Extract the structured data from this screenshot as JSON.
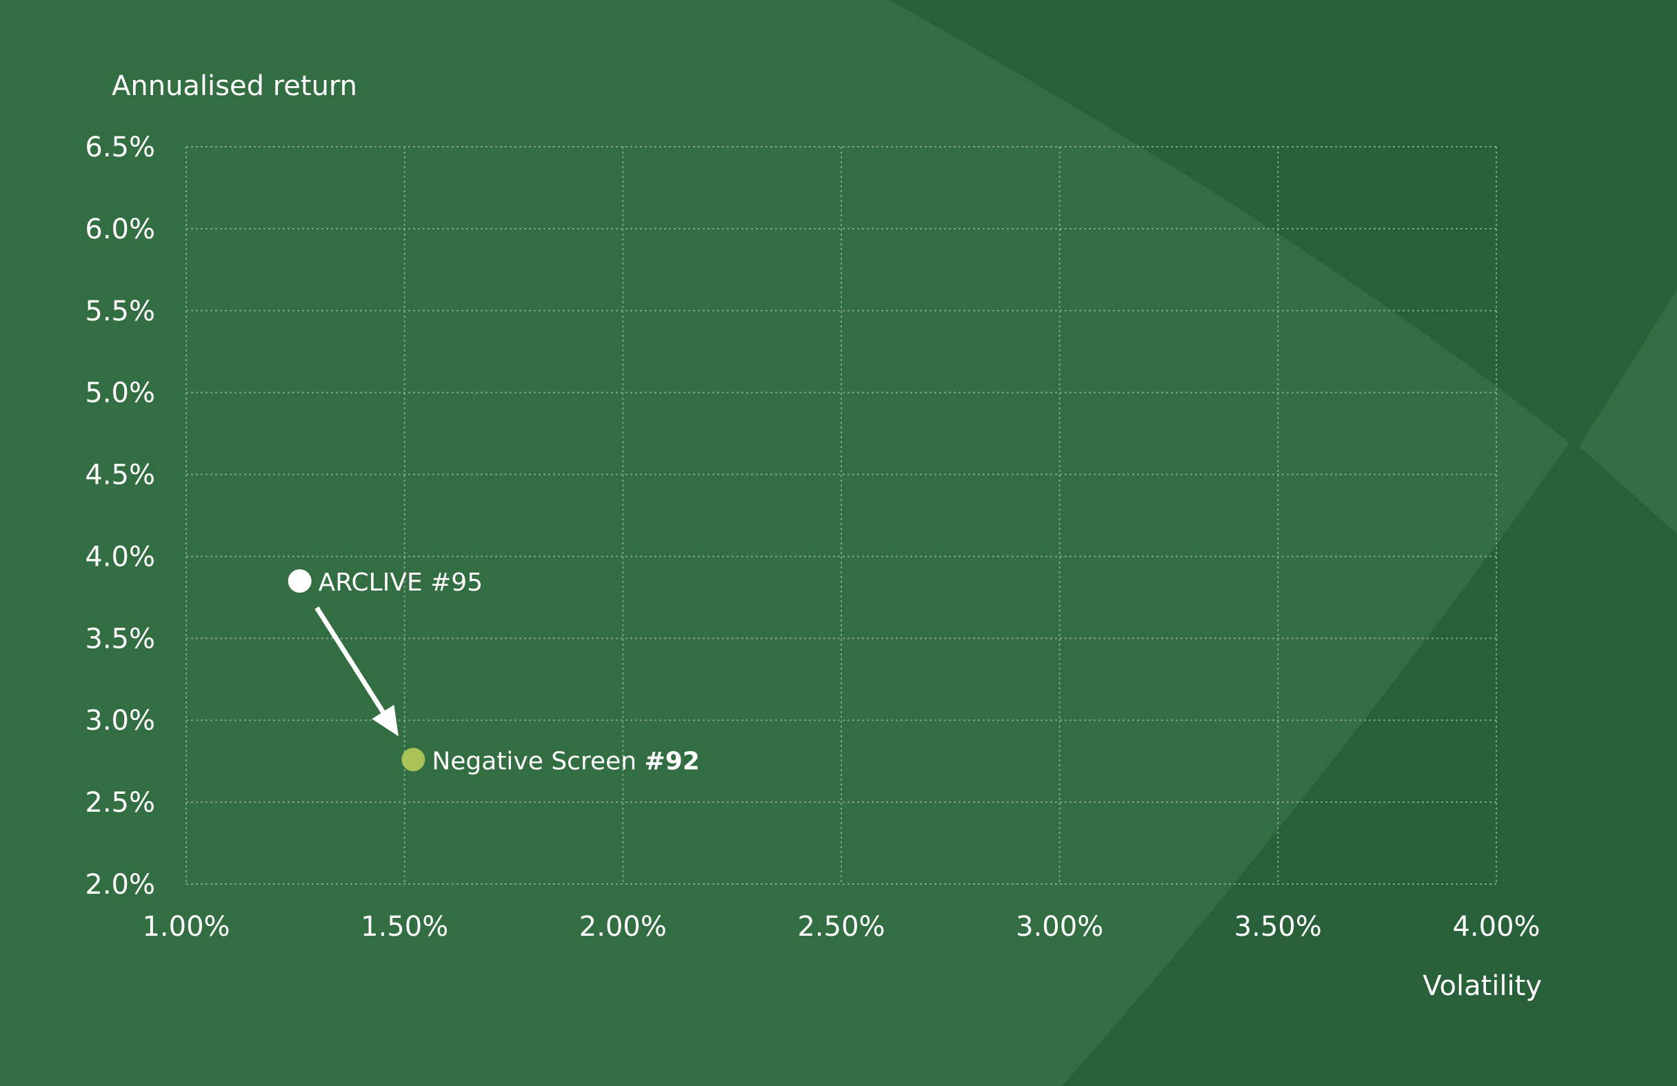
{
  "chart_data": {
    "type": "scatter",
    "ylabel": "Annualised return",
    "xlabel": "Volatility",
    "xlim": [
      1.0,
      4.0
    ],
    "ylim": [
      2.0,
      6.5
    ],
    "x_ticks": [
      "1.00%",
      "1.50%",
      "2.00%",
      "2.50%",
      "3.00%",
      "3.50%",
      "4.00%"
    ],
    "y_ticks": [
      "6.5%",
      "6.0%",
      "5.5%",
      "5.0%",
      "4.5%",
      "4.0%",
      "3.5%",
      "3.0%",
      "2.5%",
      "2.0%"
    ],
    "grid": true,
    "points": [
      {
        "label": "ARCLIVE #95",
        "x": 1.26,
        "y": 3.85,
        "color": "#ffffff"
      },
      {
        "label_text": "Negative Screen ",
        "label_bold": "#92",
        "x": 1.52,
        "y": 2.76,
        "color": "#a9c25a"
      }
    ],
    "arrow": {
      "from": "ARCLIVE #95",
      "to": "Negative Screen #92",
      "color": "#ffffff"
    }
  },
  "colors": {
    "background": "#336d42",
    "shade": "#28603a",
    "gridline": "#7fa486",
    "text": "#ffffff"
  }
}
